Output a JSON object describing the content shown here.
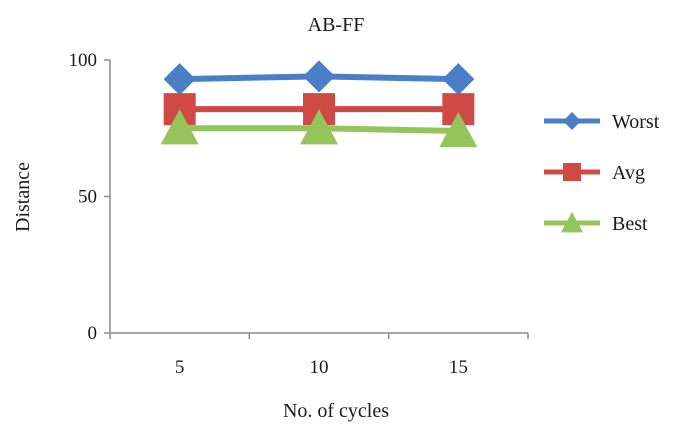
{
  "chart_data": {
    "type": "line",
    "title": "AB-FF",
    "xlabel": "No. of cycles",
    "ylabel": "Distance",
    "categories": [
      "5",
      "10",
      "15"
    ],
    "yticks": [
      "0",
      "50",
      "100"
    ],
    "ylim": [
      0,
      100
    ],
    "grid": false,
    "legend_position": "right",
    "series": [
      {
        "name": "Worst",
        "values": [
          93,
          94,
          93
        ],
        "color": "#4a7fc8",
        "marker": "diamond"
      },
      {
        "name": "Avg",
        "values": [
          82,
          82,
          82
        ],
        "color": "#d04a45",
        "marker": "square"
      },
      {
        "name": "Best",
        "values": [
          75,
          75,
          74
        ],
        "color": "#94c45a",
        "marker": "triangle"
      }
    ]
  }
}
